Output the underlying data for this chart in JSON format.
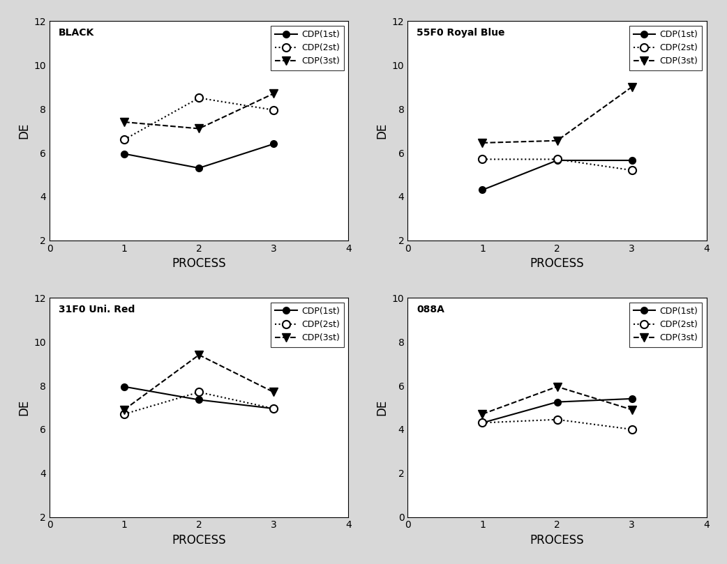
{
  "subplots": [
    {
      "title": "BLACK",
      "title_color": "black",
      "title_fontweight": "bold",
      "ylim": [
        2,
        12
      ],
      "yticks": [
        2,
        4,
        6,
        8,
        10,
        12
      ],
      "xlim": [
        0,
        4
      ],
      "xticks": [
        0,
        1,
        2,
        3,
        4
      ],
      "cdp1st": [
        5.95,
        5.3,
        6.4
      ],
      "cdp2st": [
        6.6,
        8.5,
        7.95
      ],
      "cdp3st": [
        7.4,
        7.1,
        8.7
      ]
    },
    {
      "title": "55F0 Royal Blue",
      "title_color": "black",
      "title_fontweight": "bold",
      "ylim": [
        2,
        12
      ],
      "yticks": [
        2,
        4,
        6,
        8,
        10,
        12
      ],
      "xlim": [
        0,
        4
      ],
      "xticks": [
        0,
        1,
        2,
        3,
        4
      ],
      "cdp1st": [
        4.3,
        5.65,
        5.65
      ],
      "cdp2st": [
        5.7,
        5.7,
        5.2
      ],
      "cdp3st": [
        6.45,
        6.55,
        9.0
      ]
    },
    {
      "title": "31F0 Uni. Red",
      "title_color": "black",
      "title_fontweight": "bold",
      "ylim": [
        2,
        12
      ],
      "yticks": [
        2,
        4,
        6,
        8,
        10,
        12
      ],
      "xlim": [
        0,
        4
      ],
      "xticks": [
        0,
        1,
        2,
        3,
        4
      ],
      "cdp1st": [
        7.95,
        7.35,
        6.95
      ],
      "cdp2st": [
        6.7,
        7.7,
        6.95
      ],
      "cdp3st": [
        6.9,
        9.4,
        7.7
      ]
    },
    {
      "title": "088A",
      "title_color": "black",
      "title_fontweight": "bold",
      "ylim": [
        0,
        10
      ],
      "yticks": [
        0,
        2,
        4,
        6,
        8,
        10
      ],
      "xlim": [
        0,
        4
      ],
      "xticks": [
        0,
        1,
        2,
        3,
        4
      ],
      "cdp1st": [
        4.3,
        5.25,
        5.4
      ],
      "cdp2st": [
        4.3,
        4.45,
        4.0
      ],
      "cdp3st": [
        4.7,
        5.95,
        4.9
      ]
    }
  ],
  "x": [
    1,
    2,
    3
  ],
  "xlabel": "PROCESS",
  "ylabel": "DE",
  "legend_labels": [
    "CDP(1st)",
    "CDP(2st)",
    "CDP(3st)"
  ],
  "line_color": "black",
  "fig_bg_color": "#d8d8d8",
  "plot_bg_color": "white",
  "marker_size": 7,
  "line_width": 1.5
}
